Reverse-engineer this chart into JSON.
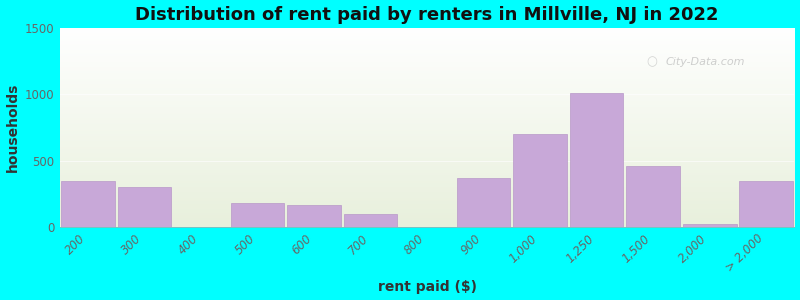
{
  "categories": [
    "200",
    "300",
    "400",
    "500",
    "600",
    "700",
    "800",
    "900",
    "1,000",
    "1,250",
    "1,500",
    "2,000",
    "> 2,000"
  ],
  "x_positions": [
    0,
    1,
    2,
    3,
    4,
    5,
    6,
    7,
    8,
    9,
    10,
    11,
    12
  ],
  "values": [
    350,
    300,
    0,
    185,
    165,
    100,
    0,
    370,
    700,
    1010,
    460,
    25,
    350
  ],
  "bar_color": "#c8a8d8",
  "bar_edgecolor": "#b898c8",
  "title": "Distribution of rent paid by renters in Millville, NJ in 2022",
  "xlabel": "rent paid ($)",
  "ylabel": "households",
  "ylim": [
    0,
    1500
  ],
  "yticks": [
    0,
    500,
    1000,
    1500
  ],
  "background_color": "#00ffff",
  "grad_top": "#ffffff",
  "grad_bottom": "#e8f0dc",
  "watermark": "City-Data.com",
  "title_fontsize": 13,
  "axis_label_fontsize": 10,
  "tick_fontsize": 8.5
}
